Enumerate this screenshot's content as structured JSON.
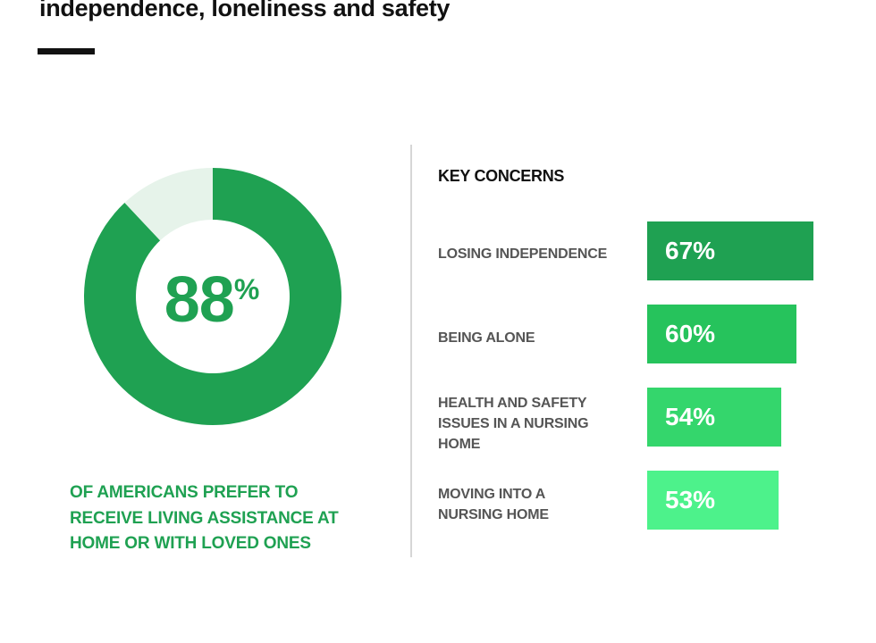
{
  "title": "independence, loneliness and safety",
  "colors": {
    "donut_filled": "#1fa152",
    "donut_remainder": "#e6f3ea",
    "accent_text": "#1fa152",
    "bar_1": "#1fa152",
    "bar_2": "#26c35c",
    "bar_3": "#34d66c",
    "bar_4": "#4df28b"
  },
  "donut": {
    "value_text": "88",
    "percent_sign": "%",
    "caption": "OF AMERICANS PREFER TO\nRECEIVE LIVING ASSISTANCE AT\nHOME OR WITH LOVED ONES"
  },
  "concerns": {
    "heading": "KEY CONCERNS"
  },
  "chart_data": [
    {
      "type": "pie",
      "values": [
        88,
        12
      ],
      "labels": [
        "88%",
        ""
      ]
    },
    {
      "type": "bar",
      "categories": [
        "LOSING INDEPENDENCE",
        "BEING ALONE",
        "HEALTH AND SAFETY\nISSUES IN A NURSING\nHOME",
        "MOVING INTO A\nNURSING HOME"
      ],
      "values": [
        67,
        60,
        54,
        53
      ],
      "data_labels": [
        "67%",
        "60%",
        "54%",
        "53%"
      ],
      "orientation": "horizontal",
      "title": "KEY CONCERNS"
    }
  ]
}
